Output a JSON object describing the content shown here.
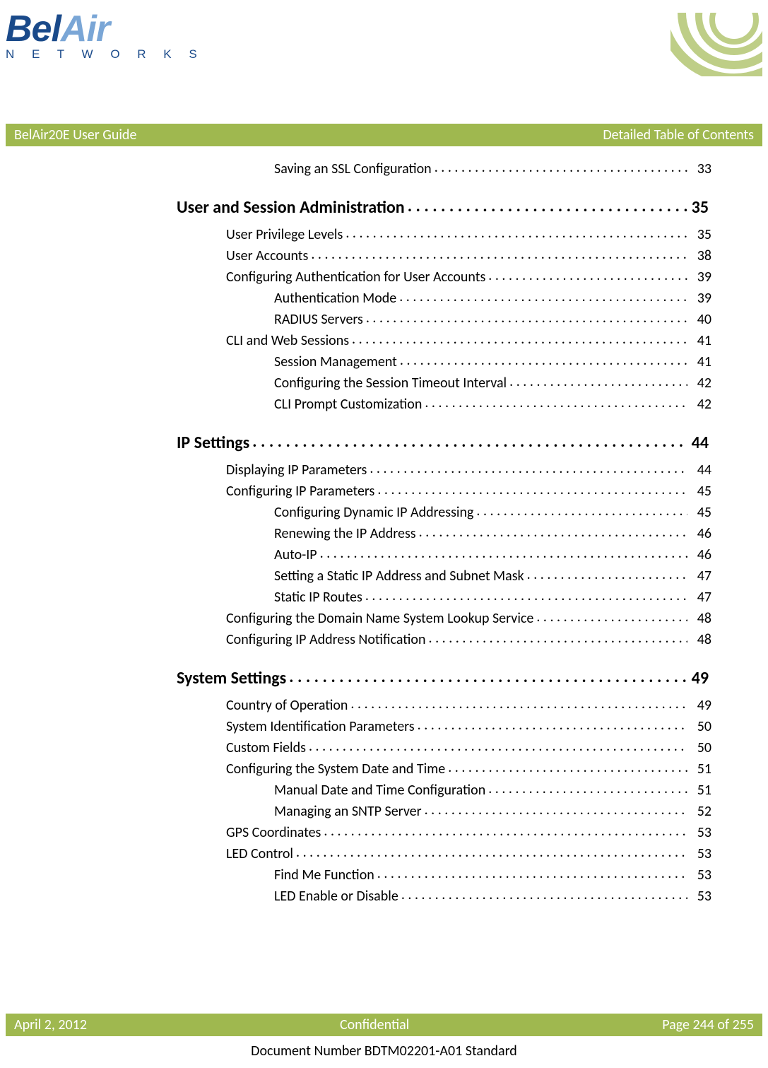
{
  "header": {
    "logo_main_a": "Bel",
    "logo_main_b": "Air",
    "logo_sub": "N E T W O R K S"
  },
  "title_band": {
    "left": "BelAir20E User Guide",
    "right": "Detailed Table of Contents"
  },
  "toc": {
    "orphan": {
      "title": "Saving an SSL Configuration",
      "page": "33"
    },
    "chapters": [
      {
        "title": "User and Session Administration",
        "page": "35",
        "items": [
          {
            "title": "User Privilege Levels",
            "page": "35",
            "level": 1
          },
          {
            "title": "User Accounts",
            "page": "38",
            "level": 1
          },
          {
            "title": "Configuring Authentication for User Accounts",
            "page": "39",
            "level": 1
          },
          {
            "title": "Authentication Mode",
            "page": "39",
            "level": 2
          },
          {
            "title": "RADIUS Servers",
            "page": "40",
            "level": 2
          },
          {
            "title": "CLI and Web Sessions",
            "page": "41",
            "level": 1
          },
          {
            "title": "Session Management",
            "page": "41",
            "level": 2
          },
          {
            "title": "Configuring the Session Timeout Interval",
            "page": "42",
            "level": 2
          },
          {
            "title": "CLI Prompt Customization",
            "page": "42",
            "level": 2
          }
        ]
      },
      {
        "title": "IP Settings",
        "page": "44",
        "items": [
          {
            "title": "Displaying IP Parameters",
            "page": "44",
            "level": 1
          },
          {
            "title": "Configuring IP Parameters",
            "page": "45",
            "level": 1
          },
          {
            "title": "Configuring Dynamic IP Addressing",
            "page": "45",
            "level": 2
          },
          {
            "title": "Renewing the IP Address",
            "page": "46",
            "level": 2
          },
          {
            "title": "Auto-IP",
            "page": "46",
            "level": 2
          },
          {
            "title": "Setting a Static IP Address and Subnet Mask",
            "page": "47",
            "level": 2
          },
          {
            "title": "Static IP Routes",
            "page": "47",
            "level": 2
          },
          {
            "title": "Configuring the Domain Name System Lookup Service",
            "page": "48",
            "level": 1
          },
          {
            "title": "Configuring IP Address Notification",
            "page": "48",
            "level": 1
          }
        ]
      },
      {
        "title": "System Settings",
        "page": "49",
        "items": [
          {
            "title": "Country of Operation",
            "page": "49",
            "level": 1
          },
          {
            "title": "System Identification Parameters",
            "page": "50",
            "level": 1
          },
          {
            "title": "Custom Fields",
            "page": "50",
            "level": 1
          },
          {
            "title": "Configuring the System Date and Time",
            "page": "51",
            "level": 1
          },
          {
            "title": "Manual Date and Time Configuration",
            "page": "51",
            "level": 2
          },
          {
            "title": "Managing an SNTP Server",
            "page": "52",
            "level": 2
          },
          {
            "title": "GPS Coordinates",
            "page": "53",
            "level": 1
          },
          {
            "title": "LED Control",
            "page": "53",
            "level": 1
          },
          {
            "title": "Find Me Function",
            "page": "53",
            "level": 2
          },
          {
            "title": "LED Enable or Disable",
            "page": "53",
            "level": 2
          }
        ]
      }
    ]
  },
  "footer": {
    "left": "April 2, 2012",
    "center": "Confidential",
    "right": "Page 244 of 255",
    "docnum": "Document Number BDTM02201-A01 Standard"
  },
  "colors": {
    "band": "#9fb84f",
    "logo_dark": "#1a4a8a",
    "logo_light": "#7aa6d6"
  }
}
